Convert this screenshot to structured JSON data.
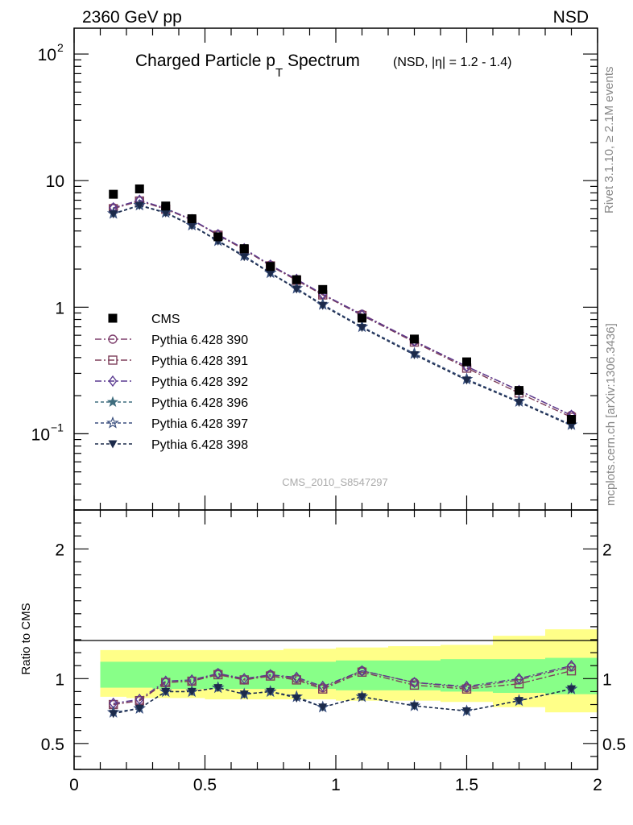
{
  "header": {
    "energy": "2360 GeV pp",
    "process": "NSD",
    "title_main": "Charged Particle p",
    "title_sub": "T",
    "title_word": " Spectrum",
    "title_note": "(NSD, |η| = 1.2 - 1.4)",
    "rivet": "Rivet 3.1.10, ≥ 2.1M events",
    "site": "mcplots.cern.ch [arXiv:1306.3436]",
    "analysis": "CMS_2010_S8547297",
    "ratio_label": "Ratio to CMS"
  },
  "colors": {
    "band_yellow": "#ffff88",
    "band_green": "#88ff88",
    "p390": "#7e3f6d",
    "p391": "#7e3f5a",
    "p392": "#5a3a90",
    "p396": "#3f6d7e",
    "p397": "#3a4f7e",
    "p398": "#1c2a4a"
  },
  "chart_data": {
    "type": "scatter",
    "xlim": [
      0,
      2
    ],
    "ylim_main": [
      0.025,
      160
    ],
    "ylog": true,
    "ylim_ratio": [
      0.3,
      2.3
    ],
    "x_ticks": [
      "0",
      "0.5",
      "1",
      "1.5",
      "2"
    ],
    "y_ticks_main": [
      "10²",
      "10",
      "1",
      "10⁻¹"
    ],
    "y_ticks_ratio": [
      "0.5",
      "1",
      "2"
    ],
    "legend_position": "lower-left",
    "x": [
      0.15,
      0.25,
      0.35,
      0.45,
      0.55,
      0.65,
      0.75,
      0.85,
      0.95,
      1.1,
      1.3,
      1.5,
      1.7,
      1.9
    ],
    "x_edges": [
      0.1,
      0.2,
      0.3,
      0.4,
      0.5,
      0.6,
      0.7,
      0.8,
      0.9,
      1.0,
      1.2,
      1.4,
      1.6,
      1.8,
      2.0
    ],
    "data": {
      "name": "CMS",
      "values": [
        7.8,
        8.6,
        6.3,
        5.0,
        3.6,
        2.9,
        2.1,
        1.65,
        1.38,
        0.82,
        0.56,
        0.37,
        0.22,
        0.13
      ],
      "band_yellow_lo": [
        0.86,
        0.85,
        0.85,
        0.85,
        0.84,
        0.84,
        0.84,
        0.84,
        0.84,
        0.83,
        0.83,
        0.82,
        0.78,
        0.74
      ],
      "band_yellow_hi": [
        1.22,
        1.22,
        1.22,
        1.22,
        1.22,
        1.22,
        1.22,
        1.23,
        1.23,
        1.24,
        1.25,
        1.26,
        1.33,
        1.38
      ],
      "band_green_lo": [
        0.93,
        0.93,
        0.92,
        0.92,
        0.92,
        0.92,
        0.92,
        0.92,
        0.92,
        0.91,
        0.91,
        0.9,
        0.89,
        0.88
      ],
      "band_green_hi": [
        1.13,
        1.13,
        1.13,
        1.13,
        1.13,
        1.13,
        1.13,
        1.13,
        1.13,
        1.14,
        1.14,
        1.15,
        1.15,
        1.16
      ]
    },
    "series": [
      {
        "name": "Pythia 6.428 390",
        "key": "p390",
        "marker": "circle",
        "dash": "8 3 2 3",
        "values": [
          6.1,
          6.9,
          6.0,
          4.9,
          3.75,
          2.85,
          2.15,
          1.65,
          1.26,
          0.88,
          0.54,
          0.34,
          0.22,
          0.14
        ],
        "ratio": [
          0.8,
          0.83,
          0.97,
          0.98,
          1.04,
          0.99,
          1.03,
          1.0,
          0.93,
          1.06,
          0.97,
          0.93,
          0.99,
          1.09
        ]
      },
      {
        "name": "Pythia 6.428 391",
        "key": "p391",
        "marker": "square",
        "dash": "8 3 2 3",
        "values": [
          6.0,
          6.9,
          5.95,
          4.88,
          3.7,
          2.85,
          2.12,
          1.63,
          1.25,
          0.86,
          0.53,
          0.33,
          0.21,
          0.135
        ],
        "ratio": [
          0.8,
          0.83,
          0.97,
          0.98,
          1.03,
          0.99,
          1.02,
          0.99,
          0.92,
          1.05,
          0.95,
          0.92,
          0.96,
          1.06
        ]
      },
      {
        "name": "Pythia 6.428 392",
        "key": "p392",
        "marker": "diamond",
        "dash": "8 3 2 3",
        "values": [
          6.1,
          7.0,
          6.05,
          4.92,
          3.75,
          2.9,
          2.15,
          1.66,
          1.27,
          0.87,
          0.54,
          0.34,
          0.22,
          0.14
        ],
        "ratio": [
          0.81,
          0.84,
          0.98,
          0.99,
          1.04,
          1.0,
          1.03,
          1.01,
          0.94,
          1.06,
          0.97,
          0.94,
          1.0,
          1.1
        ]
      },
      {
        "name": "Pythia 6.428 396",
        "key": "p396",
        "marker": "star",
        "dash": "4 3",
        "values": [
          5.5,
          6.4,
          5.6,
          4.45,
          3.35,
          2.55,
          1.87,
          1.41,
          1.05,
          0.7,
          0.43,
          0.27,
          0.18,
          0.118
        ],
        "ratio": [
          0.74,
          0.77,
          0.9,
          0.9,
          0.93,
          0.88,
          0.9,
          0.86,
          0.78,
          0.86,
          0.79,
          0.75,
          0.83,
          0.92
        ]
      },
      {
        "name": "Pythia 6.428 397",
        "key": "p397",
        "marker": "star-open",
        "dash": "4 3",
        "values": [
          5.5,
          6.4,
          5.6,
          4.45,
          3.35,
          2.55,
          1.87,
          1.41,
          1.05,
          0.7,
          0.43,
          0.27,
          0.18,
          0.118
        ],
        "ratio": [
          0.74,
          0.77,
          0.9,
          0.9,
          0.93,
          0.88,
          0.9,
          0.86,
          0.78,
          0.86,
          0.79,
          0.75,
          0.83,
          0.92
        ]
      },
      {
        "name": "Pythia 6.428 398",
        "key": "p398",
        "marker": "triangle-down",
        "dash": "4 3",
        "values": [
          5.45,
          6.35,
          5.55,
          4.4,
          3.32,
          2.5,
          1.85,
          1.39,
          1.03,
          0.69,
          0.42,
          0.265,
          0.177,
          0.116
        ],
        "ratio": [
          0.73,
          0.77,
          0.9,
          0.9,
          0.93,
          0.88,
          0.9,
          0.85,
          0.78,
          0.86,
          0.79,
          0.75,
          0.83,
          0.92
        ]
      }
    ]
  }
}
